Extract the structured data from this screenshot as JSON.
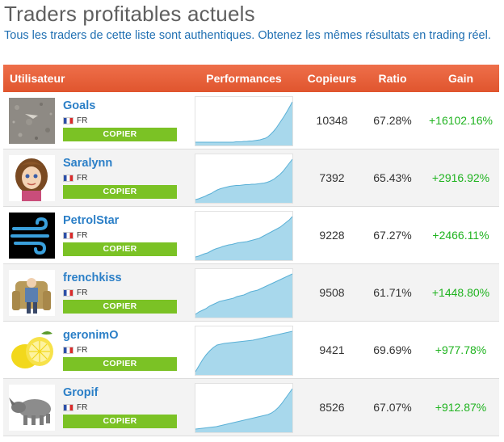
{
  "title": "Traders profitables actuels",
  "subtitle": "Tous les traders de cette liste sont authentiques. Obtenez les mêmes résultats en trading réel.",
  "headers": {
    "user": "Utilisateur",
    "performance": "Performances",
    "copiers": "Copieurs",
    "ratio": "Ratio",
    "gain": "Gain"
  },
  "colors": {
    "header": "#e55f38",
    "copy_button": "#7bc225",
    "gain": "#1fb31f",
    "username": "#2b7fc7",
    "sparkline_fill": "#a8d8ec",
    "sparkline_line": "#5ab0d6"
  },
  "traders": [
    {
      "name": "Goals",
      "country": "FR",
      "copy_label": "COPIER",
      "copiers": "10348",
      "ratio": "67.28%",
      "gain": "+16102.16%",
      "avatar_icon": "stone-texture-avatar",
      "performance": [
        0,
        0,
        0,
        0,
        0,
        0,
        0,
        0,
        0,
        0,
        0,
        0,
        0,
        0,
        0,
        0.01,
        0.01,
        0.01,
        0.02,
        0.02,
        0.03,
        0.03,
        0.04,
        0.05,
        0.06,
        0.08,
        0.1,
        0.14,
        0.2,
        0.27,
        0.35,
        0.45,
        0.55,
        0.65,
        0.76,
        0.88,
        1
      ]
    },
    {
      "name": "Saralynn",
      "country": "FR",
      "copy_label": "COPIER",
      "copiers": "7392",
      "ratio": "65.43%",
      "gain": "+2916.92%",
      "avatar_icon": "cartoon-girl-avatar",
      "performance": [
        0,
        0.02,
        0.05,
        0.08,
        0.12,
        0.15,
        0.2,
        0.24,
        0.27,
        0.29,
        0.31,
        0.33,
        0.34,
        0.35,
        0.35,
        0.36,
        0.37,
        0.37,
        0.38,
        0.38,
        0.39,
        0.4,
        0.41,
        0.43,
        0.46,
        0.5,
        0.56,
        0.62,
        0.7,
        0.8,
        0.9,
        1
      ]
    },
    {
      "name": "PetrolStar",
      "country": "FR",
      "copy_label": "COPIER",
      "copiers": "9228",
      "ratio": "67.27%",
      "gain": "+2466.11%",
      "avatar_icon": "wind-logo-avatar",
      "performance": [
        0,
        0.02,
        0.05,
        0.08,
        0.1,
        0.14,
        0.18,
        0.21,
        0.23,
        0.26,
        0.28,
        0.3,
        0.31,
        0.33,
        0.35,
        0.36,
        0.37,
        0.38,
        0.4,
        0.42,
        0.44,
        0.46,
        0.5,
        0.54,
        0.58,
        0.62,
        0.66,
        0.7,
        0.74,
        0.8,
        0.86,
        0.92,
        1
      ]
    },
    {
      "name": "frenchkiss",
      "country": "FR",
      "copy_label": "COPIER",
      "copiers": "9508",
      "ratio": "61.71%",
      "gain": "+1448.80%",
      "avatar_icon": "armchair-man-avatar",
      "performance": [
        0,
        0.06,
        0.1,
        0.14,
        0.2,
        0.24,
        0.28,
        0.32,
        0.34,
        0.36,
        0.38,
        0.4,
        0.44,
        0.46,
        0.48,
        0.52,
        0.56,
        0.58,
        0.6,
        0.64,
        0.68,
        0.72,
        0.76,
        0.8,
        0.84,
        0.88,
        0.92,
        0.96,
        1
      ]
    },
    {
      "name": "geronimO",
      "country": "FR",
      "copy_label": "COPIER",
      "copiers": "9421",
      "ratio": "69.69%",
      "gain": "+977.78%",
      "avatar_icon": "lemon-avatar",
      "performance": [
        0,
        0.15,
        0.3,
        0.42,
        0.52,
        0.6,
        0.66,
        0.68,
        0.7,
        0.71,
        0.72,
        0.73,
        0.74,
        0.75,
        0.76,
        0.77,
        0.78,
        0.8,
        0.82,
        0.84,
        0.86,
        0.88,
        0.9,
        0.92,
        0.94,
        0.96,
        0.98,
        1
      ]
    },
    {
      "name": "Gropif",
      "country": "FR",
      "copy_label": "COPIER",
      "copiers": "8526",
      "ratio": "67.07%",
      "gain": "+912.87%",
      "avatar_icon": "rhinoceros-avatar",
      "performance": [
        0,
        0.01,
        0.02,
        0.03,
        0.04,
        0.05,
        0.06,
        0.08,
        0.1,
        0.12,
        0.14,
        0.16,
        0.18,
        0.2,
        0.22,
        0.24,
        0.26,
        0.28,
        0.3,
        0.32,
        0.34,
        0.36,
        0.4,
        0.46,
        0.54,
        0.64,
        0.76,
        0.88,
        1
      ]
    }
  ]
}
